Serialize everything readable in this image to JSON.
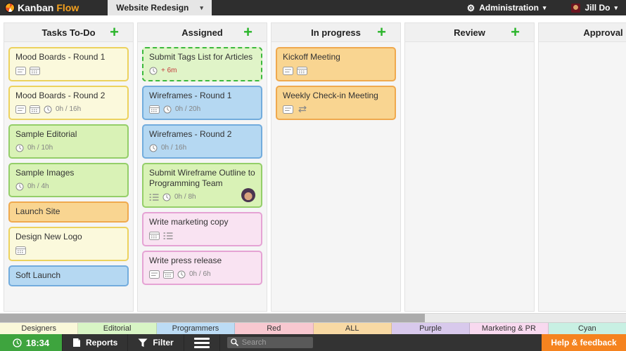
{
  "app": {
    "brand_kanban": "Kanban",
    "brand_flow": "Flow",
    "board_selector": "Website Redesign",
    "admin_label": "Administration",
    "user_name": "Jill Do",
    "caret": "▾",
    "gear": "⚙",
    "add_symbol": "+"
  },
  "colors": {
    "topbar_bg": "#2E2E2E",
    "brand_orange": "#F6A21E",
    "plus_green": "#2BB52B",
    "timer_green": "#3EA43E",
    "help_orange": "#F5831F",
    "bottombar_bg": "#333333"
  },
  "card_colors": {
    "yellow": {
      "bg": "#FBF9DC",
      "border": "#ECD25E"
    },
    "green": {
      "bg": "#D9F2B6",
      "border": "#94CE69"
    },
    "green_light": {
      "bg": "#E0F4C8",
      "border": "#3CB93C"
    },
    "orange": {
      "bg": "#F9D591",
      "border": "#EFA94E"
    },
    "blue": {
      "bg": "#B5D8F2",
      "border": "#72ACDD"
    },
    "pink": {
      "bg": "#F9E3F2",
      "border": "#E5A3D4"
    }
  },
  "columns": [
    {
      "title": "Tasks To-Do",
      "has_add": true,
      "cards": [
        {
          "title": "Mood Boards - Round 1",
          "color": "yellow",
          "icons": [
            "notes",
            "calendar"
          ],
          "time": null,
          "time_red": false,
          "avatar": false,
          "dashed": false
        },
        {
          "title": "Mood Boards - Round 2",
          "color": "yellow",
          "icons": [
            "notes",
            "calendar"
          ],
          "time": "0h / 16h",
          "time_red": false,
          "avatar": false,
          "dashed": false
        },
        {
          "title": "Sample Editorial",
          "color": "green",
          "icons": [],
          "time": "0h / 10h",
          "time_red": false,
          "avatar": false,
          "dashed": false
        },
        {
          "title": "Sample Images",
          "color": "green",
          "icons": [],
          "time": "0h / 4h",
          "time_red": false,
          "avatar": false,
          "dashed": false
        },
        {
          "title": "Launch Site",
          "color": "orange",
          "icons": [],
          "time": null,
          "time_red": false,
          "avatar": false,
          "dashed": false
        },
        {
          "title": "Design New Logo",
          "color": "yellow",
          "icons": [
            "calendar"
          ],
          "time": null,
          "time_red": false,
          "avatar": false,
          "dashed": false
        },
        {
          "title": "Soft Launch",
          "color": "blue",
          "icons": [],
          "time": null,
          "time_red": false,
          "avatar": false,
          "dashed": false
        }
      ]
    },
    {
      "title": "Assigned",
      "has_add": true,
      "cards": [
        {
          "title": "Submit Tags List for Articles",
          "color": "green_light",
          "icons": [],
          "time": "+ 6m",
          "time_red": true,
          "avatar": false,
          "dashed": true
        },
        {
          "title": "Wireframes - Round 1",
          "color": "blue",
          "icons": [
            "calendar"
          ],
          "time": "0h / 20h",
          "time_red": false,
          "avatar": false,
          "dashed": false
        },
        {
          "title": "Wireframes - Round 2",
          "color": "blue",
          "icons": [],
          "time": "0h / 16h",
          "time_red": false,
          "avatar": false,
          "dashed": false
        },
        {
          "title": "Submit Wireframe Outline to Programming Team",
          "color": "green",
          "icons": [
            "checklist"
          ],
          "time": "0h / 8h",
          "time_red": false,
          "avatar": true,
          "dashed": false
        },
        {
          "title": "Write marketing copy",
          "color": "pink",
          "icons": [
            "calendar",
            "checklist"
          ],
          "time": null,
          "time_red": false,
          "avatar": false,
          "dashed": false
        },
        {
          "title": "Write press release",
          "color": "pink",
          "icons": [
            "notes",
            "calendar"
          ],
          "time": "0h / 6h",
          "time_red": false,
          "avatar": false,
          "dashed": false
        }
      ]
    },
    {
      "title": "In progress",
      "has_add": true,
      "cards": [
        {
          "title": "Kickoff Meeting",
          "color": "orange",
          "icons": [
            "notes",
            "calendar"
          ],
          "time": null,
          "time_red": false,
          "avatar": false,
          "dashed": false
        },
        {
          "title": "Weekly Check-in Meeting",
          "color": "orange",
          "icons": [
            "notes",
            "repeat"
          ],
          "time": null,
          "time_red": false,
          "avatar": false,
          "dashed": false
        }
      ]
    },
    {
      "title": "Review",
      "has_add": true,
      "cards": []
    },
    {
      "title": "Approval",
      "has_add": false,
      "cards": []
    }
  ],
  "swimlane_tabs": [
    {
      "label": "Designers",
      "bg": "#FAF8D9"
    },
    {
      "label": "Editorial",
      "bg": "#D8F5C5"
    },
    {
      "label": "Programmers",
      "bg": "#BCDCF5"
    },
    {
      "label": "Red",
      "bg": "#F8C8D0"
    },
    {
      "label": "ALL",
      "bg": "#F8D9A4"
    },
    {
      "label": "Purple",
      "bg": "#D8C9EC"
    },
    {
      "label": "Marketing & PR",
      "bg": "#F8D9EF"
    },
    {
      "label": "Cyan",
      "bg": "#C8F0E3"
    }
  ],
  "footer": {
    "timer": "18:34",
    "reports_label": "Reports",
    "filter_label": "Filter",
    "search_placeholder": "Search",
    "help_label": "Help & feedback"
  }
}
